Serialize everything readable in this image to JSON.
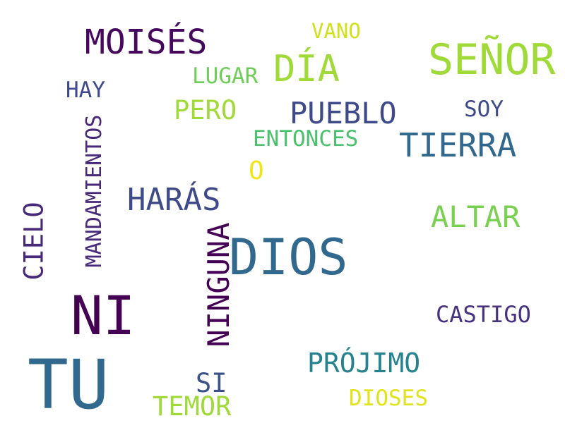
{
  "cloud": {
    "words": [
      {
        "text": "TU",
        "color": "#31688e"
      },
      {
        "text": "DIOS",
        "color": "#31688e"
      },
      {
        "text": "NI",
        "color": "#440154"
      },
      {
        "text": "SEÑOR",
        "color": "#a0da39"
      },
      {
        "text": "MOISÉS",
        "color": "#46085c"
      },
      {
        "text": "NINGUNA",
        "color": "#440154"
      },
      {
        "text": "DÍA",
        "color": "#a0da39"
      },
      {
        "text": "TIERRA",
        "color": "#31688e"
      },
      {
        "text": "PUEBLO",
        "color": "#3e4a89"
      },
      {
        "text": "HARÁS",
        "color": "#3e4a89"
      },
      {
        "text": "ALTAR",
        "color": "#7ad151"
      },
      {
        "text": "MANDAMIENTOS",
        "color": "#482878"
      },
      {
        "text": "CIELO",
        "color": "#482878"
      },
      {
        "text": "PRÓJIMO",
        "color": "#26828e"
      },
      {
        "text": "TEMOR",
        "color": "#a0da39"
      },
      {
        "text": "PERO",
        "color": "#a0da39"
      },
      {
        "text": "CASTIGO",
        "color": "#46327e"
      },
      {
        "text": "LUGAR",
        "color": "#6ece58"
      },
      {
        "text": "HAY",
        "color": "#3e4a89"
      },
      {
        "text": "SOY",
        "color": "#3e4a89"
      },
      {
        "text": "ENTONCES",
        "color": "#4ac16d"
      },
      {
        "text": "VANO",
        "color": "#d0e11c"
      },
      {
        "text": "SI",
        "color": "#3b528b"
      },
      {
        "text": "DIOSES",
        "color": "#e1e21a"
      },
      {
        "text": "O",
        "color": "#f0e51c"
      }
    ]
  }
}
